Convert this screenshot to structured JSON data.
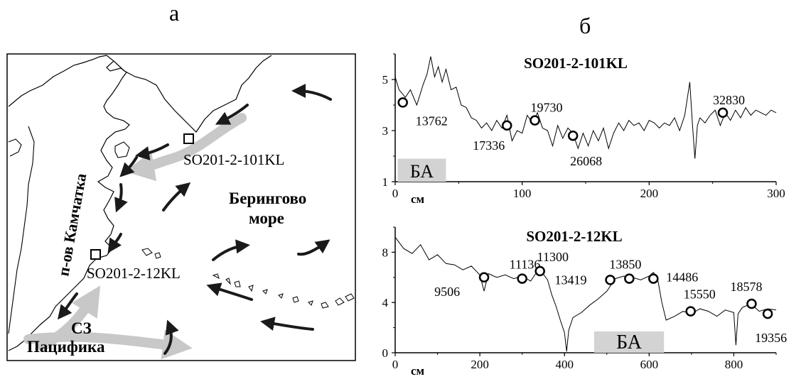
{
  "panel_labels": {
    "map": "а",
    "charts": "б"
  },
  "map": {
    "landmass_label": "п-ов Камчатка",
    "sea_label_line1": "Берингово",
    "sea_label_line2": "море",
    "pacific_label_line1": "СЗ",
    "pacific_label_line2": "Пацифика",
    "station_north": "SO201-2-101KL",
    "station_south": "SO201-2-12KL",
    "colors": {
      "current_main": "#c8c8c8",
      "current_arrow": "#1a1a1a",
      "coast": "#000000"
    }
  },
  "chart_data": [
    {
      "type": "line",
      "title": "SO201-2-101KL",
      "xlabel": "см",
      "ylabel": "",
      "xlim": [
        0,
        300
      ],
      "ylim": [
        1,
        6
      ],
      "xticks": [
        0,
        100,
        200,
        300
      ],
      "yticks": [
        1,
        3,
        5
      ],
      "highlight": {
        "label": "БА",
        "x": [
          2,
          40
        ],
        "y": [
          1,
          1.9
        ]
      },
      "series": [
        {
          "x": [
            0,
            3,
            8,
            12,
            17,
            22,
            25,
            28,
            31,
            34,
            37,
            40,
            44,
            48,
            52,
            56,
            60,
            64,
            68,
            72,
            76,
            80,
            84,
            88,
            92,
            96,
            100,
            104,
            108,
            112,
            116,
            120,
            124,
            128,
            132,
            136,
            140,
            144,
            148,
            152,
            156,
            160,
            164,
            168,
            172,
            176,
            180,
            184,
            188,
            192,
            196,
            200,
            204,
            208,
            212,
            216,
            220,
            224,
            228,
            232,
            234,
            236,
            238,
            240,
            244,
            248,
            252,
            256,
            260,
            264,
            268,
            272,
            276,
            280,
            284,
            288,
            292,
            296,
            300
          ],
          "values": [
            5.1,
            4.6,
            4.3,
            4.6,
            4.0,
            4.8,
            5.2,
            5.9,
            5.1,
            5.5,
            4.9,
            5.4,
            4.6,
            4.7,
            4.0,
            3.9,
            3.5,
            3.4,
            3.1,
            3.3,
            3.0,
            3.4,
            3.1,
            3.6,
            2.6,
            3.0,
            2.9,
            3.6,
            3.3,
            3.7,
            3.1,
            3.0,
            2.4,
            3.2,
            2.7,
            3.1,
            2.9,
            2.3,
            2.9,
            2.4,
            3.0,
            2.6,
            3.1,
            2.3,
            2.9,
            3.3,
            3.0,
            3.4,
            3.2,
            3.3,
            3.0,
            3.4,
            3.3,
            3.1,
            3.3,
            3.2,
            3.5,
            3.0,
            3.6,
            4.9,
            3.3,
            1.9,
            3.2,
            3.5,
            3.3,
            3.6,
            3.8,
            3.2,
            3.7,
            3.4,
            3.8,
            3.5,
            3.9,
            3.6,
            3.8,
            3.7,
            3.6,
            3.8,
            3.7
          ]
        }
      ],
      "dated_points": [
        {
          "x": 6,
          "y": 4.1,
          "label": "13762"
        },
        {
          "x": 88,
          "y": 3.2,
          "label": "17336"
        },
        {
          "x": 110,
          "y": 3.4,
          "label": "19730"
        },
        {
          "x": 140,
          "y": 2.8,
          "label": "26068"
        },
        {
          "x": 258,
          "y": 3.7,
          "label": "32830"
        }
      ]
    },
    {
      "type": "line",
      "title": "SO201-2-12KL",
      "xlabel": "см",
      "ylabel": "",
      "xlim": [
        0,
        900
      ],
      "ylim": [
        0,
        10
      ],
      "xticks": [
        0,
        200,
        400,
        600,
        800
      ],
      "yticks": [
        0,
        4,
        8
      ],
      "highlight": {
        "label": "БА",
        "x": [
          470,
          635
        ],
        "y": [
          0,
          1.7
        ]
      },
      "series": [
        {
          "x": [
            0,
            20,
            40,
            60,
            80,
            100,
            120,
            140,
            160,
            180,
            200,
            210,
            220,
            240,
            260,
            280,
            300,
            320,
            340,
            360,
            370,
            380,
            390,
            400,
            405,
            410,
            420,
            440,
            460,
            480,
            500,
            520,
            540,
            560,
            580,
            600,
            610,
            620,
            630,
            640,
            660,
            680,
            700,
            720,
            740,
            760,
            780,
            800,
            805,
            810,
            820,
            840,
            860,
            880,
            900
          ],
          "values": [
            9.2,
            8.3,
            7.9,
            8.6,
            7.4,
            7.8,
            7.1,
            7.0,
            6.6,
            6.9,
            6.2,
            4.9,
            6.3,
            6.0,
            6.2,
            5.9,
            6.1,
            5.7,
            6.7,
            5.8,
            4.6,
            3.7,
            2.6,
            1.6,
            0.1,
            1.8,
            2.8,
            3.2,
            3.8,
            4.3,
            4.9,
            5.9,
            6.1,
            6.0,
            5.8,
            6.1,
            6.4,
            5.9,
            4.0,
            2.6,
            2.9,
            3.3,
            3.1,
            3.5,
            3.3,
            2.9,
            3.4,
            3.2,
            0.6,
            3.1,
            3.6,
            3.9,
            3.3,
            3.5,
            3.4
          ]
        }
      ],
      "dated_points": [
        {
          "x": 210,
          "y": 6.0,
          "label": "9506"
        },
        {
          "x": 300,
          "y": 5.9,
          "label": "11136"
        },
        {
          "x": 342,
          "y": 6.5,
          "label": "11300"
        },
        {
          "x": 508,
          "y": 5.8,
          "label": "13419"
        },
        {
          "x": 553,
          "y": 5.9,
          "label": "13850"
        },
        {
          "x": 610,
          "y": 5.9,
          "label": "14486"
        },
        {
          "x": 698,
          "y": 3.3,
          "label": "15550"
        },
        {
          "x": 842,
          "y": 3.9,
          "label": "18578"
        },
        {
          "x": 880,
          "y": 3.1,
          "label": "19356"
        }
      ]
    }
  ]
}
